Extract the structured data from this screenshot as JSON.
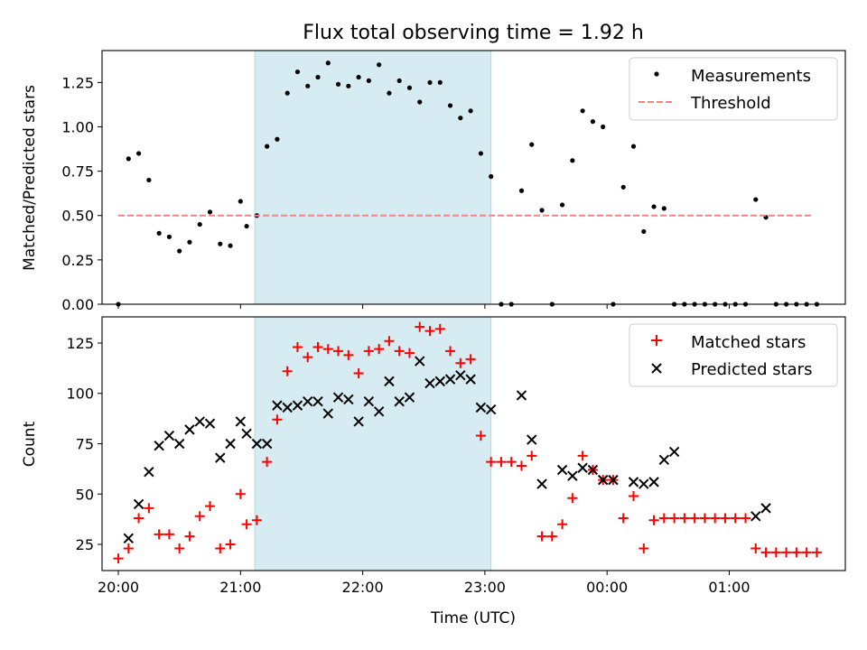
{
  "title": "Flux total observing time = 1.92 h",
  "xlabel": "Time (UTC)",
  "colors": {
    "span": "#add8e6",
    "measurements": "#000000",
    "threshold": "#ff7f7f",
    "matched": "#ff0000",
    "predicted": "#000000"
  },
  "chart_data": [
    {
      "type": "scatter",
      "ylabel": "Matched/Predicted stars",
      "xlim": [
        "19:52",
        "01:57"
      ],
      "ylim": [
        0,
        1.43
      ],
      "yticks": [
        0.0,
        0.25,
        0.5,
        0.75,
        1.0,
        1.25
      ],
      "ytick_labels": [
        "0.00",
        "0.25",
        "0.50",
        "0.75",
        "1.00",
        "1.25"
      ],
      "grid": false,
      "legend_position": "top-right",
      "shaded_span": [
        "21:07",
        "23:03"
      ],
      "series": [
        {
          "name": "Measurements",
          "marker": "dot",
          "x": [
            "20:00",
            "20:05",
            "20:10",
            "20:15",
            "20:20",
            "20:25",
            "20:30",
            "20:35",
            "20:40",
            "20:45",
            "20:50",
            "20:55",
            "21:00",
            "21:03",
            "21:08",
            "21:13",
            "21:18",
            "21:23",
            "21:28",
            "21:33",
            "21:38",
            "21:43",
            "21:48",
            "21:53",
            "21:58",
            "22:03",
            "22:08",
            "22:13",
            "22:18",
            "22:23",
            "22:28",
            "22:33",
            "22:38",
            "22:43",
            "22:48",
            "22:53",
            "22:58",
            "23:03",
            "23:08",
            "23:13",
            "23:18",
            "23:23",
            "23:28",
            "23:33",
            "23:38",
            "23:43",
            "23:48",
            "23:53",
            "23:58",
            "00:03",
            "00:08",
            "00:13",
            "00:18",
            "00:23",
            "00:28",
            "00:33",
            "00:38",
            "00:43",
            "00:48",
            "00:53",
            "00:58",
            "01:03",
            "01:08",
            "01:13",
            "01:18",
            "01:23",
            "01:28",
            "01:33",
            "01:38",
            "01:43"
          ],
          "y": [
            0.0,
            0.82,
            0.85,
            0.7,
            0.4,
            0.38,
            0.3,
            0.35,
            0.45,
            0.52,
            0.34,
            0.33,
            0.58,
            0.44,
            0.5,
            0.89,
            0.93,
            1.19,
            1.31,
            1.23,
            1.28,
            1.36,
            1.24,
            1.23,
            1.28,
            1.26,
            1.35,
            1.19,
            1.26,
            1.22,
            1.14,
            1.25,
            1.25,
            1.12,
            1.05,
            1.09,
            0.85,
            0.72,
            0.0,
            0.0,
            0.64,
            0.9,
            0.53,
            0.0,
            0.56,
            0.81,
            1.09,
            1.03,
            1.0,
            0.0,
            0.66,
            0.89,
            0.41,
            0.55,
            0.54,
            0.0,
            0.0,
            0.0,
            0.0,
            0.0,
            0.0,
            0.0,
            0.0,
            0.59,
            0.49,
            0.0,
            0.0,
            0.0,
            0.0,
            0.0
          ]
        },
        {
          "name": "Threshold",
          "style": "dashed",
          "x": [
            "20:00",
            "01:40"
          ],
          "y": [
            0.5,
            0.5
          ]
        }
      ]
    },
    {
      "type": "scatter",
      "ylabel": "Count",
      "xlim": [
        "19:52",
        "01:57"
      ],
      "ylim": [
        12,
        138
      ],
      "yticks": [
        25,
        50,
        75,
        100,
        125
      ],
      "ytick_labels": [
        "25",
        "50",
        "75",
        "100",
        "125"
      ],
      "xticks": [
        "20:00",
        "21:00",
        "22:00",
        "23:00",
        "00:00",
        "01:00"
      ],
      "grid": false,
      "legend_position": "top-right",
      "shaded_span": [
        "21:07",
        "23:03"
      ],
      "series": [
        {
          "name": "Matched stars",
          "marker": "plus",
          "x": [
            "20:00",
            "20:05",
            "20:10",
            "20:15",
            "20:20",
            "20:25",
            "20:30",
            "20:35",
            "20:40",
            "20:45",
            "20:50",
            "20:55",
            "21:00",
            "21:03",
            "21:08",
            "21:13",
            "21:18",
            "21:23",
            "21:28",
            "21:33",
            "21:38",
            "21:43",
            "21:48",
            "21:53",
            "21:58",
            "22:03",
            "22:08",
            "22:13",
            "22:18",
            "22:23",
            "22:28",
            "22:33",
            "22:38",
            "22:43",
            "22:48",
            "22:53",
            "22:58",
            "23:03",
            "23:08",
            "23:13",
            "23:18",
            "23:23",
            "23:28",
            "23:33",
            "23:38",
            "23:43",
            "23:48",
            "23:53",
            "23:58",
            "00:03",
            "00:08",
            "00:13",
            "00:18",
            "00:23",
            "00:28",
            "00:33",
            "00:38",
            "00:43",
            "00:48",
            "00:53",
            "00:58",
            "01:03",
            "01:08",
            "01:13",
            "01:18",
            "01:23",
            "01:28",
            "01:33",
            "01:38",
            "01:43"
          ],
          "y": [
            18,
            23,
            38,
            43,
            30,
            30,
            23,
            29,
            39,
            44,
            23,
            25,
            50,
            35,
            37,
            66,
            87,
            111,
            123,
            118,
            123,
            122,
            121,
            119,
            110,
            121,
            122,
            126,
            121,
            120,
            133,
            131,
            132,
            121,
            115,
            117,
            79,
            66,
            66,
            66,
            64,
            69,
            29,
            29,
            35,
            48,
            69,
            62,
            57,
            57,
            38,
            49,
            23,
            37,
            38,
            38,
            38,
            38,
            38,
            38,
            38,
            38,
            38,
            23,
            21,
            21,
            21,
            21,
            21,
            21
          ]
        },
        {
          "name": "Predicted stars",
          "marker": "x",
          "x": [
            "20:05",
            "20:10",
            "20:15",
            "20:20",
            "20:25",
            "20:30",
            "20:35",
            "20:40",
            "20:45",
            "20:50",
            "20:55",
            "21:00",
            "21:03",
            "21:08",
            "21:13",
            "21:18",
            "21:23",
            "21:28",
            "21:33",
            "21:38",
            "21:43",
            "21:48",
            "21:53",
            "21:58",
            "22:03",
            "22:08",
            "22:13",
            "22:18",
            "22:23",
            "22:28",
            "22:33",
            "22:38",
            "22:43",
            "22:48",
            "22:53",
            "22:58",
            "23:03",
            "23:18",
            "23:23",
            "23:28",
            "23:38",
            "23:43",
            "23:48",
            "23:53",
            "23:58",
            "00:03",
            "00:13",
            "00:18",
            "00:23",
            "00:28",
            "00:33",
            "01:13",
            "01:18"
          ],
          "y": [
            28,
            45,
            61,
            74,
            79,
            75,
            82,
            86,
            85,
            68,
            75,
            86,
            80,
            75,
            75,
            94,
            93,
            94,
            96,
            96,
            90,
            98,
            97,
            86,
            96,
            91,
            106,
            96,
            98,
            116,
            105,
            106,
            107,
            109,
            107,
            93,
            92,
            99,
            77,
            55,
            62,
            59,
            63,
            62,
            57,
            57,
            56,
            55,
            56,
            67,
            71,
            39,
            43
          ]
        }
      ]
    }
  ]
}
